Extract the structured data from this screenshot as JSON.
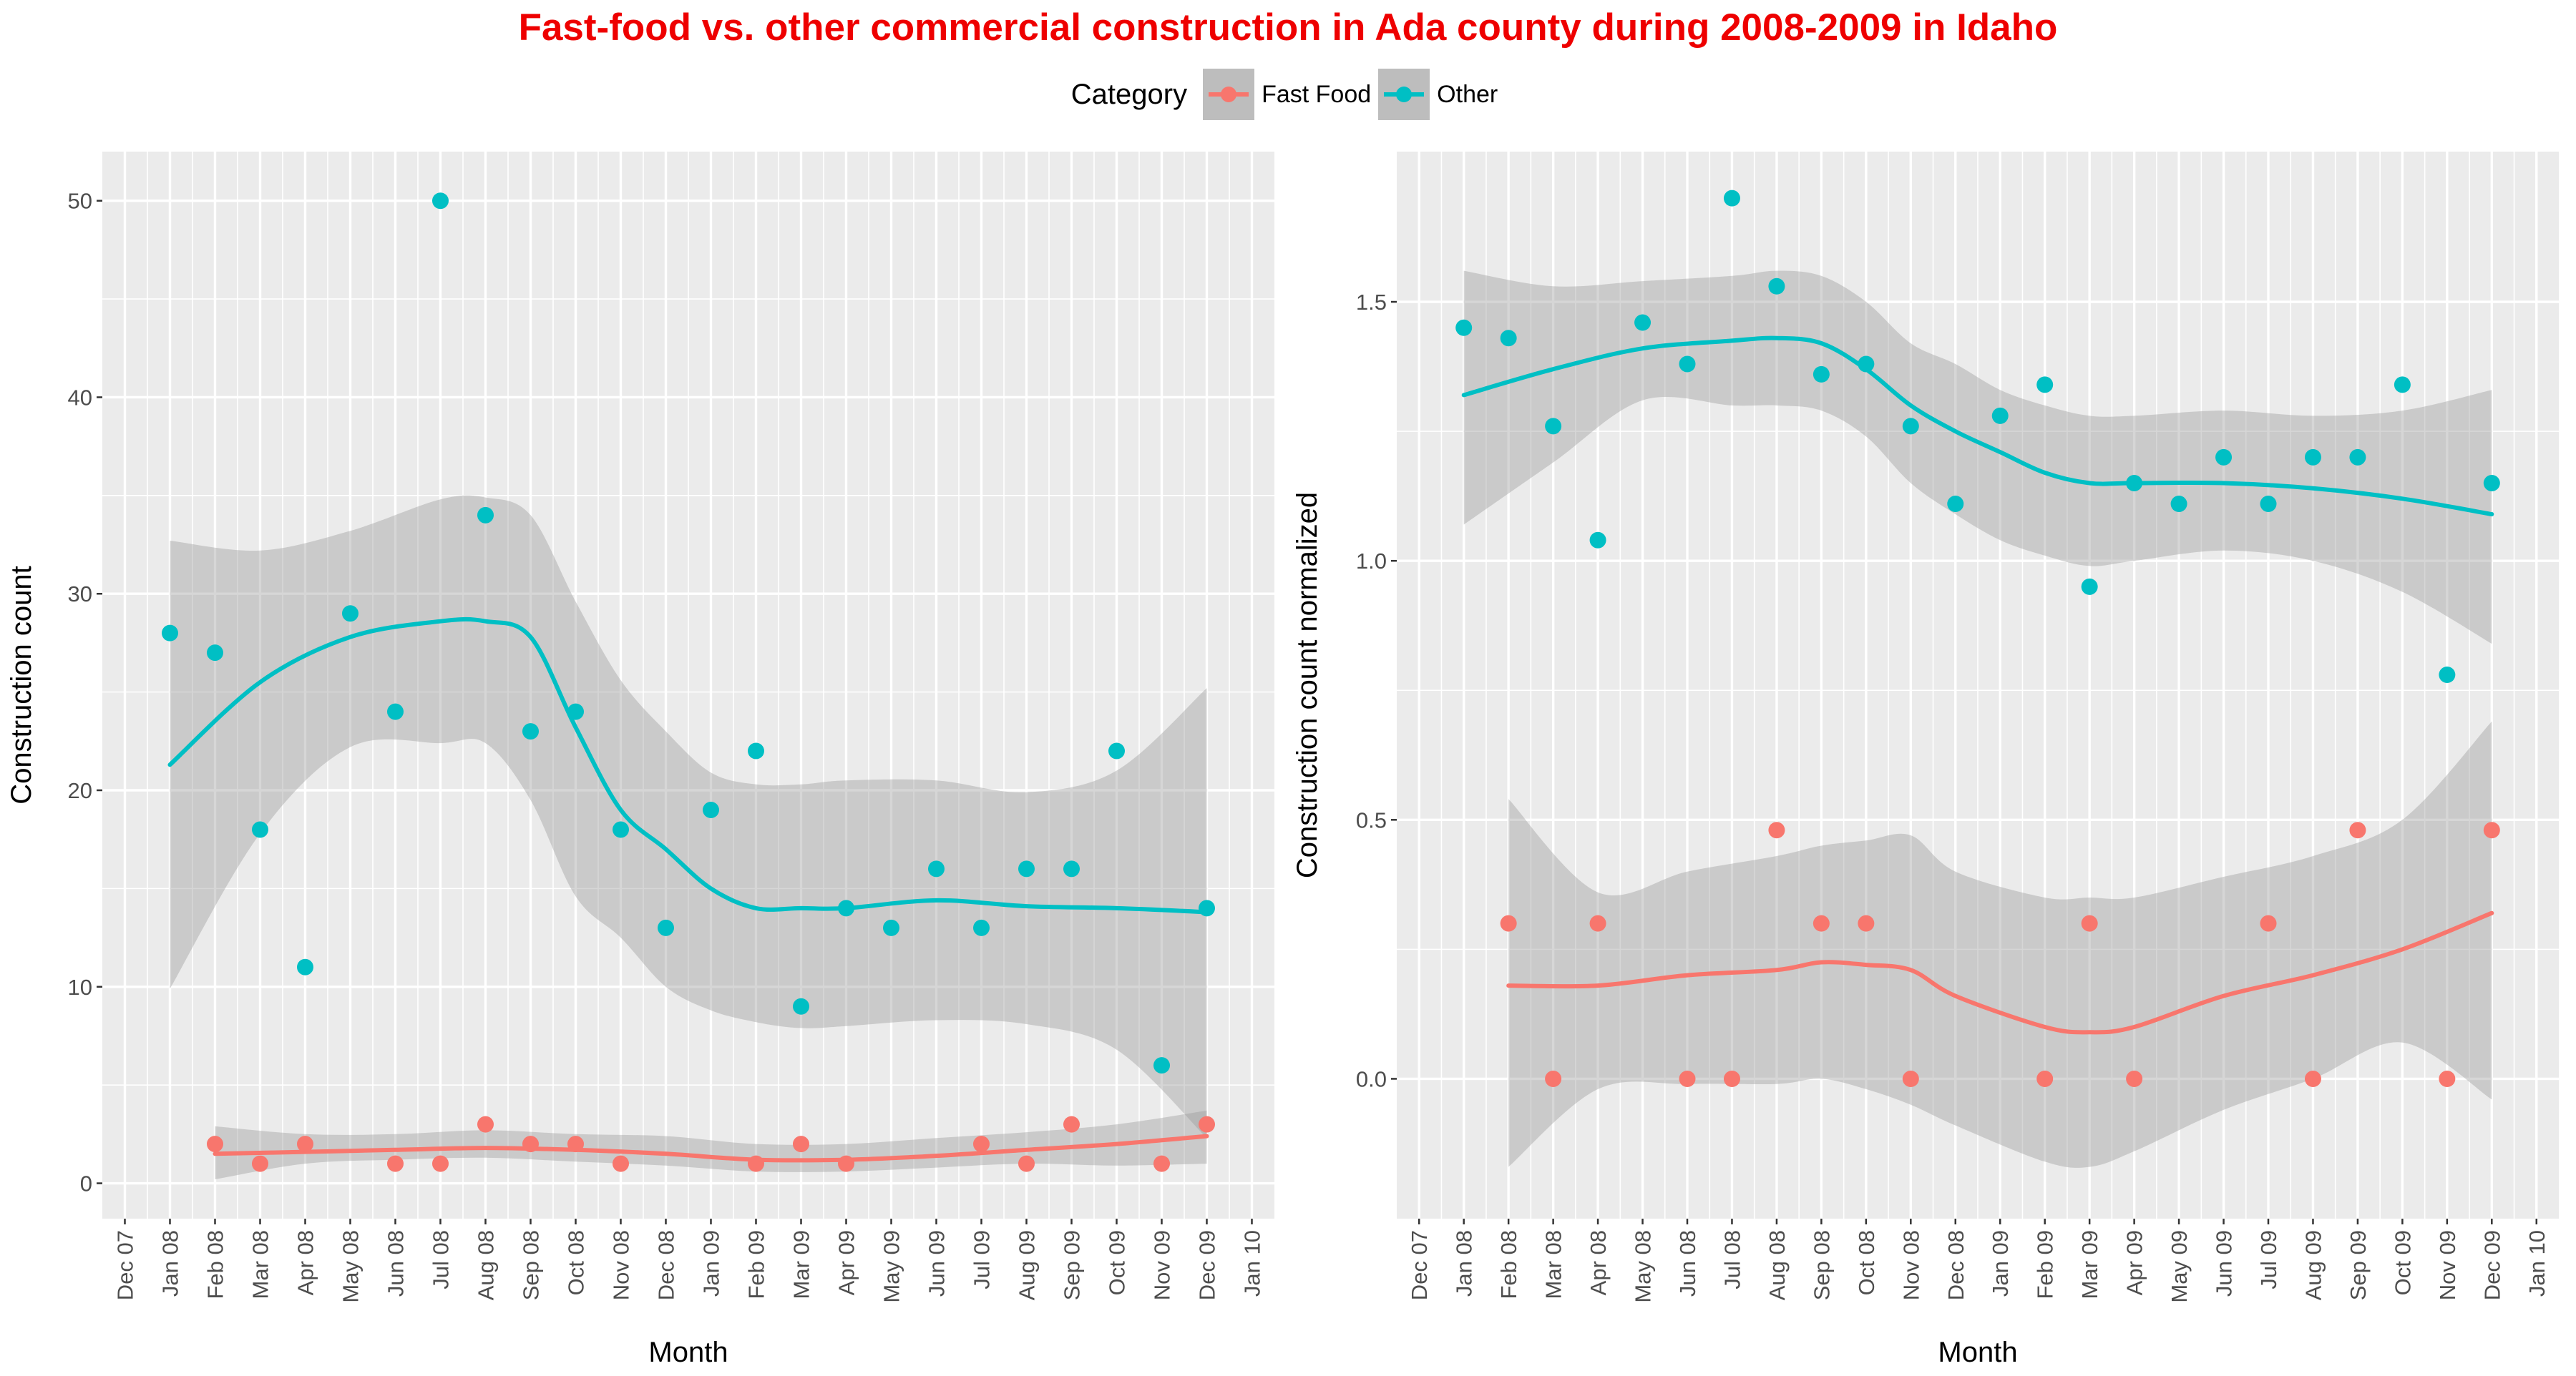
{
  "title": "Fast-food vs. other commercial construction in Ada county during 2008-2009 in Idaho",
  "legend": {
    "title": "Category",
    "items": [
      {
        "label": "Fast Food",
        "color": "#F8766D"
      },
      {
        "label": "Other",
        "color": "#00BFC4"
      }
    ]
  },
  "chart_data": [
    {
      "type": "scatter",
      "title": "",
      "xlabel": "Month",
      "ylabel": "Construction count",
      "x_tick_labels": [
        "Dec 07",
        "Jan 08",
        "Feb 08",
        "Mar 08",
        "Apr 08",
        "May 08",
        "Jun 08",
        "Jul 08",
        "Aug 08",
        "Sep 08",
        "Oct 08",
        "Nov 08",
        "Dec 08",
        "Jan 09",
        "Feb 09",
        "Mar 09",
        "Apr 09",
        "May 09",
        "Jun 09",
        "Jul 09",
        "Aug 09",
        "Sep 09",
        "Oct 09",
        "Nov 09",
        "Dec 09",
        "Jan 10"
      ],
      "y_ticks": [
        0,
        10,
        20,
        30,
        40,
        50
      ],
      "ylim": [
        -1.8,
        52.5
      ],
      "grid": true,
      "series": [
        {
          "name": "Fast Food",
          "color": "#F8766D",
          "x": [
            "Feb 08",
            "Mar 08",
            "Apr 08",
            "Jun 08",
            "Jul 08",
            "Aug 08",
            "Sep 08",
            "Oct 08",
            "Nov 08",
            "Feb 09",
            "Mar 09",
            "Apr 09",
            "Jul 09",
            "Aug 09",
            "Sep 09",
            "Nov 09",
            "Dec 09"
          ],
          "values": [
            2,
            1,
            2,
            1,
            1,
            3,
            2,
            2,
            1,
            1,
            2,
            1,
            2,
            1,
            3,
            1,
            3
          ],
          "smooth_x": [
            "Feb 08",
            "Apr 08",
            "Jun 08",
            "Aug 08",
            "Oct 08",
            "Dec 08",
            "Feb 09",
            "Apr 09",
            "Jun 09",
            "Aug 09",
            "Oct 09",
            "Dec 09"
          ],
          "smooth": [
            1.5,
            1.6,
            1.7,
            1.8,
            1.7,
            1.5,
            1.2,
            1.2,
            1.4,
            1.7,
            2.0,
            2.4
          ],
          "ci_lower": [
            0.2,
            1.0,
            1.2,
            1.3,
            1.1,
            0.9,
            0.6,
            0.6,
            0.8,
            1.0,
            0.9,
            1.0
          ],
          "ci_upper": [
            2.9,
            2.5,
            2.5,
            2.7,
            2.5,
            2.4,
            2.0,
            2.0,
            2.3,
            2.6,
            3.0,
            3.7
          ]
        },
        {
          "name": "Other",
          "color": "#00BFC4",
          "x": [
            "Jan 08",
            "Feb 08",
            "Mar 08",
            "Apr 08",
            "May 08",
            "Jun 08",
            "Jul 08",
            "Aug 08",
            "Sep 08",
            "Oct 08",
            "Nov 08",
            "Dec 08",
            "Jan 09",
            "Feb 09",
            "Mar 09",
            "Apr 09",
            "May 09",
            "Jun 09",
            "Jul 09",
            "Aug 09",
            "Sep 09",
            "Oct 09",
            "Nov 09",
            "Dec 09"
          ],
          "values": [
            28,
            27,
            18,
            11,
            29,
            24,
            50,
            34,
            23,
            24,
            18,
            13,
            19,
            22,
            9,
            14,
            13,
            16,
            13,
            16,
            16,
            22,
            6,
            14
          ],
          "smooth_x": [
            "Jan 08",
            "Mar 08",
            "May 08",
            "Jul 08",
            "Aug 08",
            "Sep 08",
            "Oct 08",
            "Nov 08",
            "Dec 08",
            "Jan 09",
            "Feb 09",
            "Mar 09",
            "Apr 09",
            "Jun 09",
            "Aug 09",
            "Oct 09",
            "Dec 09"
          ],
          "smooth": [
            21.3,
            25.5,
            27.8,
            28.6,
            28.6,
            27.8,
            23.2,
            19.0,
            17.0,
            15.0,
            14.0,
            14.0,
            14.0,
            14.4,
            14.1,
            14.0,
            13.8
          ],
          "ci_lower": [
            9.9,
            17.8,
            22.2,
            22.4,
            22.4,
            19.5,
            14.6,
            12.5,
            10.0,
            8.8,
            8.2,
            7.9,
            8.0,
            8.3,
            8.1,
            6.8,
            2.3
          ],
          "ci_upper": [
            32.7,
            32.2,
            33.2,
            34.8,
            34.9,
            34.0,
            29.6,
            25.6,
            23.0,
            20.9,
            20.3,
            20.3,
            20.5,
            20.5,
            19.9,
            21.0,
            25.2
          ]
        }
      ]
    },
    {
      "type": "scatter",
      "title": "",
      "xlabel": "Month",
      "ylabel": "Construction count normalized",
      "x_tick_labels": [
        "Dec 07",
        "Jan 08",
        "Feb 08",
        "Mar 08",
        "Apr 08",
        "May 08",
        "Jun 08",
        "Jul 08",
        "Aug 08",
        "Sep 08",
        "Oct 08",
        "Nov 08",
        "Dec 08",
        "Jan 09",
        "Feb 09",
        "Mar 09",
        "Apr 09",
        "May 09",
        "Jun 09",
        "Jul 09",
        "Aug 09",
        "Sep 09",
        "Oct 09",
        "Nov 09",
        "Dec 09",
        "Jan 10"
      ],
      "y_ticks": [
        0.0,
        0.5,
        1.0,
        1.5
      ],
      "y_tick_labels": [
        "0.0",
        "0.5",
        "1.0",
        "1.5"
      ],
      "ylim": [
        -0.27,
        1.79
      ],
      "grid": true,
      "series": [
        {
          "name": "Fast Food",
          "color": "#F8766D",
          "x": [
            "Feb 08",
            "Mar 08",
            "Apr 08",
            "Jun 08",
            "Jul 08",
            "Aug 08",
            "Sep 08",
            "Oct 08",
            "Nov 08",
            "Feb 09",
            "Mar 09",
            "Apr 09",
            "Jul 09",
            "Aug 09",
            "Sep 09",
            "Nov 09",
            "Dec 09"
          ],
          "values": [
            0.3,
            0.0,
            0.3,
            0.0,
            0.0,
            0.48,
            0.3,
            0.3,
            0.0,
            0.0,
            0.3,
            0.0,
            0.3,
            0.0,
            0.48,
            0.0,
            0.48
          ],
          "smooth_x": [
            "Feb 08",
            "Apr 08",
            "Jun 08",
            "Aug 08",
            "Sep 08",
            "Oct 08",
            "Nov 08",
            "Dec 08",
            "Feb 09",
            "Mar 09",
            "Apr 09",
            "Jun 09",
            "Aug 09",
            "Oct 09",
            "Dec 09"
          ],
          "smooth": [
            0.18,
            0.18,
            0.2,
            0.21,
            0.225,
            0.22,
            0.21,
            0.16,
            0.1,
            0.09,
            0.1,
            0.16,
            0.2,
            0.25,
            0.32
          ],
          "ci_lower": [
            -0.17,
            -0.02,
            -0.01,
            -0.01,
            0.0,
            -0.02,
            -0.05,
            -0.09,
            -0.16,
            -0.17,
            -0.14,
            -0.06,
            0.0,
            0.07,
            -0.04
          ],
          "ci_upper": [
            0.54,
            0.36,
            0.4,
            0.43,
            0.45,
            0.46,
            0.47,
            0.4,
            0.35,
            0.35,
            0.35,
            0.39,
            0.43,
            0.5,
            0.69
          ]
        },
        {
          "name": "Other",
          "color": "#00BFC4",
          "x": [
            "Jan 08",
            "Feb 08",
            "Mar 08",
            "Apr 08",
            "May 08",
            "Jun 08",
            "Jul 08",
            "Aug 08",
            "Sep 08",
            "Oct 08",
            "Nov 08",
            "Dec 08",
            "Jan 09",
            "Feb 09",
            "Mar 09",
            "Apr 09",
            "May 09",
            "Jun 09",
            "Jul 09",
            "Aug 09",
            "Sep 09",
            "Oct 09",
            "Nov 09",
            "Dec 09"
          ],
          "values": [
            1.45,
            1.43,
            1.26,
            1.04,
            1.46,
            1.38,
            1.7,
            1.53,
            1.36,
            1.38,
            1.26,
            1.11,
            1.28,
            1.34,
            0.95,
            1.15,
            1.11,
            1.2,
            1.11,
            1.2,
            1.2,
            1.34,
            0.78,
            1.15
          ],
          "smooth_x": [
            "Jan 08",
            "Mar 08",
            "May 08",
            "Jul 08",
            "Aug 08",
            "Sep 08",
            "Oct 08",
            "Nov 08",
            "Dec 08",
            "Jan 09",
            "Feb 09",
            "Mar 09",
            "Apr 09",
            "Jun 09",
            "Aug 09",
            "Oct 09",
            "Dec 09"
          ],
          "smooth": [
            1.32,
            1.37,
            1.41,
            1.425,
            1.43,
            1.42,
            1.37,
            1.3,
            1.25,
            1.21,
            1.17,
            1.15,
            1.15,
            1.15,
            1.14,
            1.12,
            1.09
          ],
          "ci_lower": [
            1.07,
            1.19,
            1.31,
            1.3,
            1.3,
            1.29,
            1.24,
            1.15,
            1.09,
            1.04,
            1.01,
            0.99,
            1.0,
            1.02,
            1.0,
            0.94,
            0.84
          ],
          "ci_upper": [
            1.56,
            1.53,
            1.54,
            1.55,
            1.56,
            1.55,
            1.5,
            1.42,
            1.38,
            1.33,
            1.3,
            1.28,
            1.28,
            1.29,
            1.28,
            1.29,
            1.33
          ]
        }
      ]
    }
  ]
}
